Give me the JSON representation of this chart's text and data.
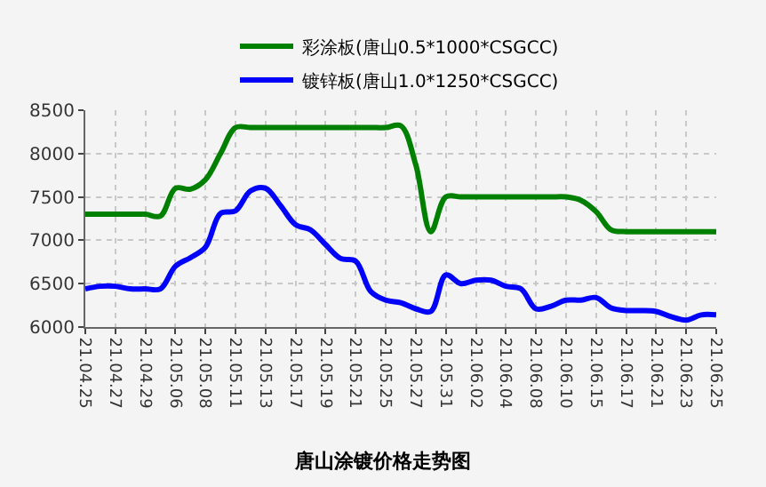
{
  "chart_data": {
    "type": "line",
    "title": "唐山涂镀价格走势图",
    "categories": [
      "21.04.25",
      null,
      "21.04.27",
      null,
      "21.04.29",
      null,
      "21.05.06",
      null,
      "21.05.08",
      null,
      "21.05.11",
      null,
      "21.05.13",
      null,
      "21.05.17",
      null,
      "21.05.19",
      null,
      "21.05.21",
      null,
      "21.05.25",
      null,
      "21.05.27",
      null,
      "21.05.31",
      null,
      "21.06.02",
      null,
      "21.06.04",
      null,
      "21.06.08",
      null,
      "21.06.10",
      null,
      "21.06.15",
      null,
      "21.06.17",
      null,
      "21.06.21",
      null,
      "21.06.23",
      null,
      "21.06.25"
    ],
    "series": [
      {
        "name": "彩涂板(唐山0.5*1000*CSGCC)",
        "color": "#008000",
        "values": [
          7300,
          7300,
          7300,
          7300,
          7300,
          7280,
          7600,
          7590,
          7700,
          8000,
          8300,
          8300,
          8300,
          8300,
          8300,
          8300,
          8300,
          8300,
          8300,
          8300,
          8300,
          8320,
          7870,
          7100,
          7500,
          7500,
          7500,
          7500,
          7500,
          7500,
          7500,
          7500,
          7500,
          7460,
          7330,
          7120,
          7100,
          7100,
          7100,
          7100,
          7100,
          7100,
          7100
        ]
      },
      {
        "name": "镀锌板(唐山1.0*1250*CSGCC)",
        "color": "#0000ff",
        "values": [
          6440,
          6470,
          6470,
          6440,
          6440,
          6440,
          6700,
          6800,
          6920,
          7310,
          7340,
          7570,
          7600,
          7400,
          7180,
          7120,
          6950,
          6790,
          6760,
          6410,
          6310,
          6280,
          6210,
          6180,
          6600,
          6500,
          6540,
          6540,
          6470,
          6440,
          6210,
          6240,
          6310,
          6310,
          6340,
          6220,
          6190,
          6190,
          6180,
          6120,
          6080,
          6140,
          6140
        ]
      }
    ],
    "ylim": [
      6000,
      8500
    ],
    "yticks": [
      6000,
      6500,
      7000,
      7500,
      8000,
      8500
    ],
    "grid": true,
    "legend": "top",
    "marker": "none",
    "line_style": "solid"
  }
}
